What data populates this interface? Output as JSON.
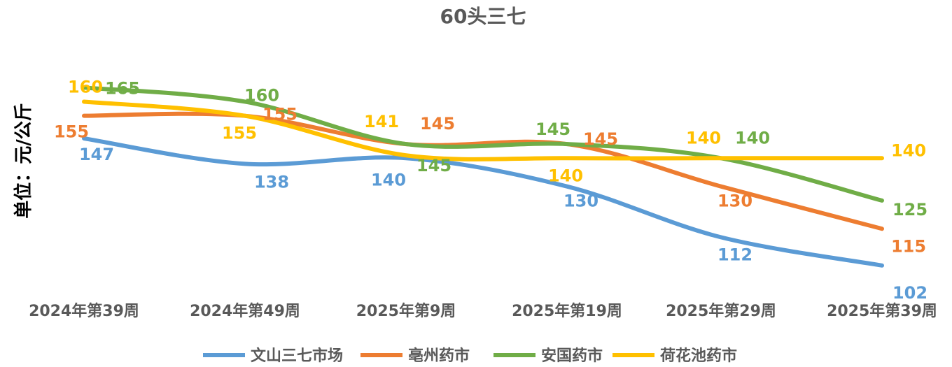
{
  "chart_data": {
    "type": "line",
    "title": "60头三七",
    "ylabel": "单位：元/公斤",
    "xlabel": "",
    "categories": [
      "2024年第39周",
      "2024年第49周",
      "2025年第9周",
      "2025年第19周",
      "2025年第29周",
      "2025年第39周"
    ],
    "series": [
      {
        "name": "文山三七市场",
        "color": "#5B9BD5",
        "values": [
          147,
          138,
          140,
          130,
          112,
          102
        ]
      },
      {
        "name": "亳州药市",
        "color": "#ED7D31",
        "values": [
          155,
          155,
          145,
          145,
          130,
          115
        ]
      },
      {
        "name": "安国药市",
        "color": "#70AD47",
        "values": [
          165,
          160,
          145,
          145,
          140,
          125
        ]
      },
      {
        "name": "荷花池药市",
        "color": "#FFC000",
        "values": [
          160,
          155,
          141,
          140,
          140,
          140
        ]
      }
    ],
    "grid": false,
    "legend": "bottom"
  }
}
